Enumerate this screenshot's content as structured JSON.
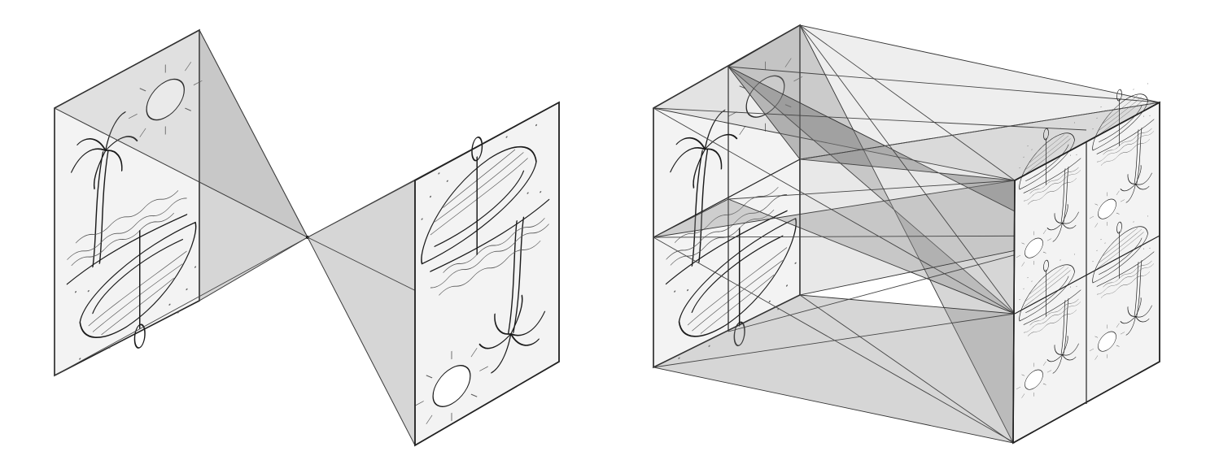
{
  "figure": {
    "panels": [
      {
        "id": "single-pinhole",
        "objects": [
          "palm-tree",
          "sun",
          "boat",
          "oar",
          "sand",
          "waves"
        ],
        "image_count": 1
      },
      {
        "id": "multiple-pinholes",
        "objects": [
          "palm-tree",
          "sun",
          "boat",
          "oar",
          "sand",
          "waves"
        ],
        "image_count": 4
      }
    ],
    "colors": {
      "plane": "#f3f3f3",
      "cone": "#8a8a8a",
      "line": "#222222"
    }
  }
}
